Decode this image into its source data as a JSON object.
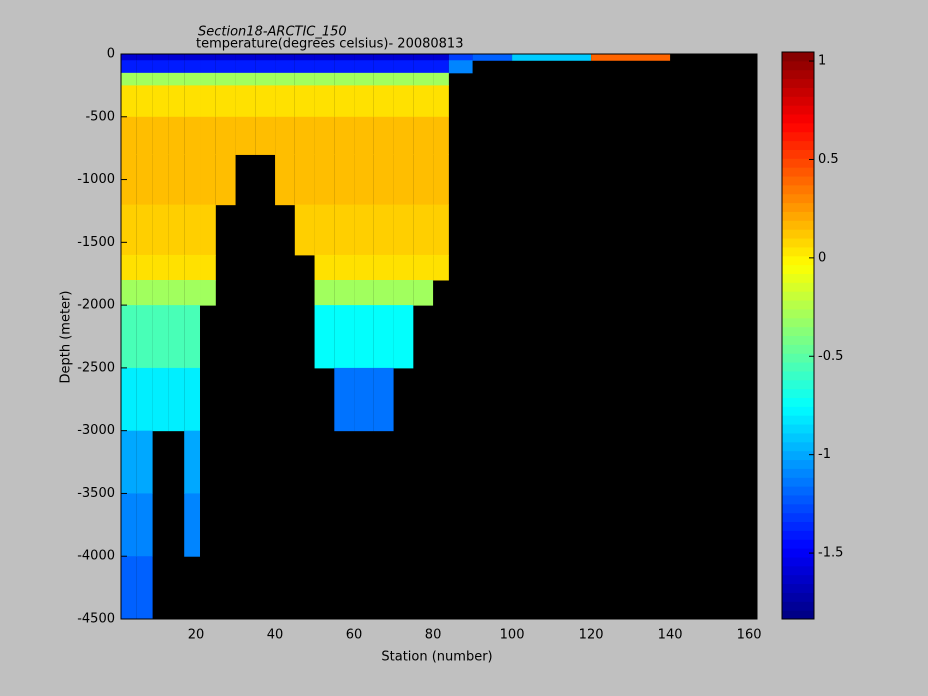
{
  "chart_data": {
    "type": "heatmap",
    "title": "Section18-ARCTIC_150",
    "subtitle": "temperature(degrees  celsius)- 20080813",
    "x_label": "Station (number)",
    "y_label": "Depth (meter)",
    "xlim": [
      1,
      162
    ],
    "ylim": [
      -4500,
      0
    ],
    "xticks": [
      20,
      40,
      60,
      80,
      100,
      120,
      140,
      160
    ],
    "yticks": [
      0,
      -500,
      -1000,
      -1500,
      -2000,
      -2500,
      -3000,
      -3500,
      -4000,
      -4500
    ],
    "x_bins": [
      1,
      5,
      9,
      13,
      17,
      21,
      25,
      30,
      35,
      40,
      45,
      50,
      55,
      60,
      65,
      70,
      75,
      80,
      84,
      90,
      100,
      120,
      140,
      162
    ],
    "y_bins": [
      0,
      -50,
      -150,
      -250,
      -500,
      -800,
      -1200,
      -1600,
      -1800,
      -2000,
      -2500,
      -3000,
      -3500,
      -4000,
      -4500
    ],
    "values": [
      [
        -1.6,
        -1.6,
        -1.6,
        -1.6,
        -1.6,
        -1.6,
        -1.6,
        -1.6,
        -1.6,
        -1.6,
        -1.6,
        -1.6,
        -1.6,
        -1.6,
        -1.6,
        -1.6,
        -1.6,
        -1.6,
        -1.3,
        -1.2,
        -0.9,
        0.4,
        null
      ],
      [
        -1.4,
        -1.4,
        -1.4,
        -1.4,
        -1.4,
        -1.4,
        -1.4,
        -1.4,
        -1.4,
        -1.4,
        -1.4,
        -1.4,
        -1.4,
        -1.4,
        -1.4,
        -1.4,
        -1.4,
        -1.4,
        -1.1,
        null,
        null,
        null,
        null
      ],
      [
        -0.3,
        -0.3,
        -0.3,
        -0.3,
        -0.3,
        -0.3,
        -0.3,
        -0.3,
        -0.3,
        -0.3,
        -0.3,
        -0.3,
        -0.3,
        -0.3,
        -0.3,
        -0.3,
        -0.3,
        -0.3,
        null,
        null,
        null,
        null,
        null
      ],
      [
        0.05,
        0.05,
        0.05,
        0.05,
        0.05,
        0.05,
        0.05,
        0.05,
        0.05,
        0.05,
        0.05,
        0.05,
        0.05,
        0.05,
        0.05,
        0.05,
        0.05,
        0.05,
        null,
        null,
        null,
        null,
        null
      ],
      [
        0.15,
        0.15,
        0.15,
        0.15,
        0.15,
        0.15,
        0.15,
        0.15,
        0.15,
        0.15,
        0.15,
        0.15,
        0.15,
        0.15,
        0.15,
        0.15,
        0.15,
        0.15,
        null,
        null,
        null,
        null,
        null
      ],
      [
        0.15,
        0.15,
        0.15,
        0.15,
        0.15,
        0.15,
        0.15,
        null,
        null,
        0.15,
        0.15,
        0.15,
        0.15,
        0.15,
        0.15,
        0.15,
        0.15,
        0.15,
        null,
        null,
        null,
        null,
        null
      ],
      [
        0.1,
        0.1,
        0.1,
        0.1,
        0.1,
        0.1,
        null,
        null,
        null,
        null,
        0.1,
        0.1,
        0.1,
        0.1,
        0.1,
        0.1,
        0.1,
        0.1,
        null,
        null,
        null,
        null,
        null
      ],
      [
        0.05,
        0.05,
        0.05,
        0.05,
        0.05,
        0.05,
        null,
        null,
        null,
        null,
        null,
        0.05,
        0.05,
        0.05,
        0.05,
        0.05,
        0.05,
        0.05,
        null,
        null,
        null,
        null,
        null
      ],
      [
        -0.3,
        -0.3,
        -0.3,
        -0.3,
        -0.3,
        -0.3,
        null,
        null,
        null,
        null,
        null,
        -0.3,
        -0.3,
        -0.3,
        -0.3,
        -0.3,
        -0.3,
        null,
        null,
        null,
        null,
        null,
        null
      ],
      [
        -0.55,
        -0.55,
        -0.55,
        -0.55,
        -0.55,
        null,
        null,
        null,
        null,
        null,
        null,
        -0.75,
        -0.75,
        -0.75,
        -0.75,
        -0.75,
        null,
        null,
        null,
        null,
        null,
        null,
        null
      ],
      [
        -0.8,
        -0.8,
        -0.8,
        -0.8,
        -0.8,
        null,
        null,
        null,
        null,
        null,
        null,
        null,
        -1.15,
        -1.15,
        -1.15,
        null,
        null,
        null,
        null,
        null,
        null,
        null,
        null
      ],
      [
        -1.0,
        -1.0,
        null,
        null,
        -1.0,
        null,
        null,
        null,
        null,
        null,
        null,
        null,
        null,
        null,
        null,
        null,
        null,
        null,
        null,
        null,
        null,
        null,
        null
      ],
      [
        -1.1,
        -1.1,
        null,
        null,
        -1.1,
        null,
        null,
        null,
        null,
        null,
        null,
        null,
        null,
        null,
        null,
        null,
        null,
        null,
        null,
        null,
        null,
        null,
        null
      ],
      [
        -1.2,
        -1.2,
        null,
        null,
        null,
        null,
        null,
        null,
        null,
        null,
        null,
        null,
        null,
        null,
        null,
        null,
        null,
        null,
        null,
        null,
        null,
        null,
        null
      ]
    ],
    "colormap": "jet",
    "clim": [
      -1.835,
      1.046
    ],
    "cticks": [
      -1.5,
      -1,
      -0.5,
      0,
      0.5,
      1
    ],
    "background": "#000000"
  }
}
